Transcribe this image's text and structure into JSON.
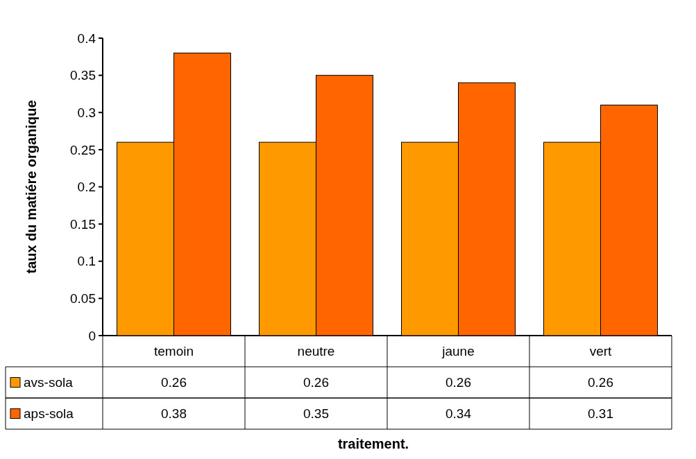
{
  "chart_data": {
    "type": "bar",
    "annotations": [
      "traitement."
    ],
    "ylabel": "taux du matiére organique",
    "categories": [
      "temoin",
      "neutre",
      "jaune",
      "vert"
    ],
    "series": [
      {
        "name": "avs-sola",
        "color": "#ff9900",
        "values": [
          0.26,
          0.26,
          0.26,
          0.26
        ]
      },
      {
        "name": "aps-sola",
        "color": "#ff6600",
        "values": [
          0.38,
          0.35,
          0.34,
          0.31
        ]
      }
    ],
    "ylim": [
      0,
      0.4
    ],
    "yticks": [
      0,
      0.05,
      0.1,
      0.15,
      0.2,
      0.25,
      0.3,
      0.35,
      0.4
    ],
    "grid": false,
    "legend": "bottom",
    "data_labels": true
  }
}
